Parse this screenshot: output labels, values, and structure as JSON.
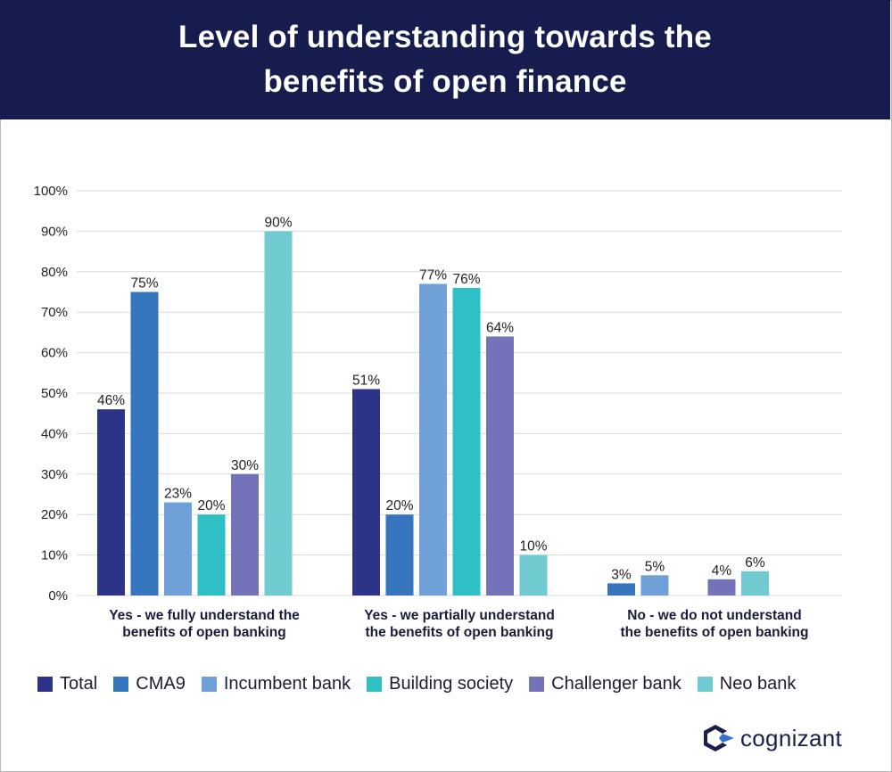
{
  "header": {
    "title_line1": "Level of understanding towards the",
    "title_line2": "benefits of open finance"
  },
  "brand": {
    "logo_text": "cognizant"
  },
  "chart_data": {
    "type": "bar",
    "title": "Level of understanding towards the benefits of open finance",
    "categories": [
      [
        "Yes - we fully understand the",
        "benefits of open banking"
      ],
      [
        "Yes - we partially understand",
        "the benefits of open banking"
      ],
      [
        "No - we do not understand",
        "the benefits of open banking"
      ]
    ],
    "ylim": [
      0,
      100
    ],
    "yticks": [
      "0%",
      "10%",
      "20%",
      "30%",
      "40%",
      "50%",
      "60%",
      "70%",
      "80%",
      "90%",
      "100%"
    ],
    "unit": "%",
    "grid": true,
    "legend_position": "bottom",
    "series": [
      {
        "name": "Total",
        "color": "#2d3387",
        "values": [
          46,
          51,
          null
        ]
      },
      {
        "name": "CMA9",
        "color": "#3576bf",
        "values": [
          75,
          20,
          3
        ]
      },
      {
        "name": "Incumbent bank",
        "color": "#6fa1d8",
        "values": [
          23,
          77,
          5
        ]
      },
      {
        "name": "Building society",
        "color": "#2ec0c5",
        "values": [
          20,
          76,
          null
        ]
      },
      {
        "name": "Challenger bank",
        "color": "#7472b8",
        "values": [
          30,
          64,
          4
        ]
      },
      {
        "name": "Neo bank",
        "color": "#6fcbcf",
        "values": [
          90,
          10,
          6
        ]
      }
    ],
    "colors": {
      "gridline": "#d9d9d9",
      "header_bg": "#171c4f",
      "label_text": "#1b1b3a",
      "logo_dark": "#1b1f4f",
      "logo_light": "#3a6fd0"
    }
  }
}
